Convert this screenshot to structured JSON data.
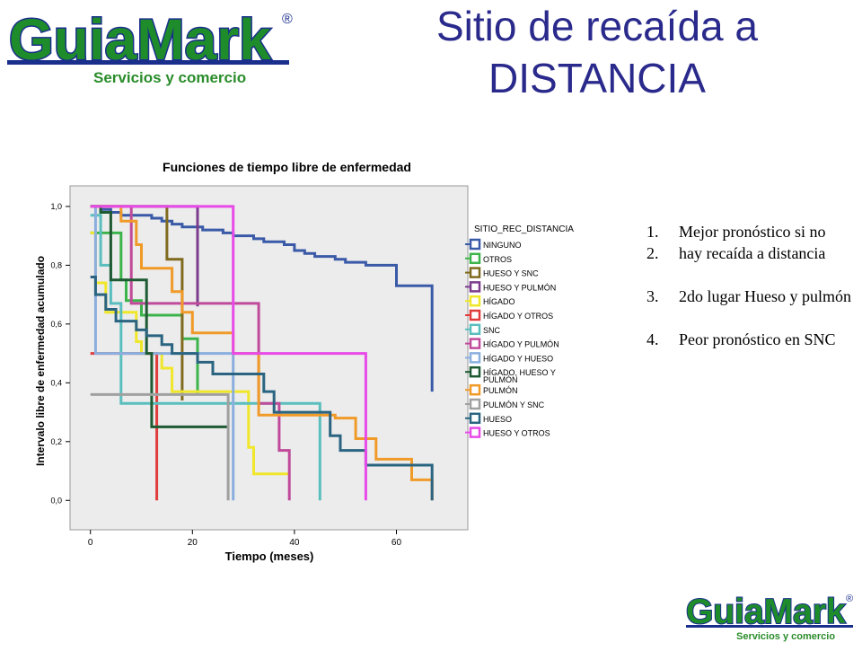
{
  "slide": {
    "title_line1": "Sitio de recaída a",
    "title_line2": "DISTANCIA"
  },
  "logo": {
    "brand": "GuiaMark",
    "registered": "®",
    "tagline": "Servicios y comercio",
    "colors": {
      "text_green": "#1e8c2a",
      "outline_blue": "#1a2f8c",
      "tagline_green": "#2a8c2a"
    }
  },
  "notes": [
    {
      "num": "1.",
      "text": "Mejor pronóstico si no"
    },
    {
      "num": "2.",
      "text": "hay recaída a distancia"
    },
    {
      "num": "3.",
      "text": "2do lugar Hueso y pulmón"
    },
    {
      "num": "4.",
      "text": "Peor pronóstico en SNC"
    }
  ],
  "chart_data": {
    "type": "line",
    "step": true,
    "title": "Funciones de tiempo libre de enfermedad",
    "xlabel": "Tiempo (meses)",
    "ylabel": "Intervalo libre de enfermedad acumulado",
    "xlim": [
      -4,
      74
    ],
    "ylim": [
      -0.1,
      1.07
    ],
    "xticks": [
      0,
      20,
      40,
      60
    ],
    "yticks": [
      0.0,
      0.2,
      0.4,
      0.6,
      0.8,
      1.0
    ],
    "xtick_labels": [
      "0",
      "20",
      "40",
      "60"
    ],
    "ytick_labels": [
      "0,0",
      "0,2",
      "0,4",
      "0,6",
      "0,8",
      "1,0"
    ],
    "grid": false,
    "legend_title": "SITIO_REC_DISTANCIA",
    "legend_position": "right",
    "plot_background": "#ececec",
    "series": [
      {
        "name": "NINGUNO",
        "color": "#3a5aa8",
        "x": [
          0,
          2,
          4,
          6,
          8,
          10,
          12,
          14,
          16,
          18,
          20,
          22,
          24,
          26,
          28,
          30,
          32,
          34,
          36,
          38,
          40,
          42,
          44,
          46,
          48,
          50,
          52,
          54,
          56,
          58,
          60,
          62,
          64,
          66,
          67
        ],
        "y": [
          1.0,
          0.99,
          0.98,
          0.97,
          0.97,
          0.97,
          0.96,
          0.95,
          0.94,
          0.93,
          0.93,
          0.92,
          0.92,
          0.91,
          0.9,
          0.9,
          0.89,
          0.88,
          0.88,
          0.87,
          0.85,
          0.84,
          0.83,
          0.83,
          0.82,
          0.81,
          0.81,
          0.8,
          0.8,
          0.8,
          0.73,
          0.73,
          0.73,
          0.73,
          0.37
        ]
      },
      {
        "name": "OTROS",
        "color": "#3cb44b",
        "x": [
          0,
          0.5,
          6,
          7,
          10,
          16,
          18,
          21,
          21
        ],
        "y": [
          0.91,
          0.91,
          0.75,
          0.68,
          0.63,
          0.63,
          0.55,
          0.36,
          0.36
        ]
      },
      {
        "name": "HUESO Y SNC",
        "color": "#7f6a1e",
        "x": [
          0,
          15,
          15,
          18,
          18
        ],
        "y": [
          1.0,
          1.0,
          0.82,
          0.49,
          0.34
        ]
      },
      {
        "name": "HUESO Y PULMÓN",
        "color": "#7b3c8c",
        "x": [
          0,
          21,
          21,
          21
        ],
        "y": [
          1.0,
          1.0,
          0.66,
          0.66
        ]
      },
      {
        "name": "HÍGADO",
        "color": "#f0e62a",
        "x": [
          0,
          1,
          3,
          5,
          9,
          10,
          14,
          16,
          24,
          31,
          32,
          39,
          39
        ],
        "y": [
          0.91,
          0.74,
          0.64,
          0.64,
          0.54,
          0.5,
          0.45,
          0.37,
          0.37,
          0.18,
          0.09,
          0.09,
          0.09
        ]
      },
      {
        "name": "HÍGADO Y OTROS",
        "color": "#e03c3c",
        "x": [
          0,
          13,
          13
        ],
        "y": [
          0.5,
          0.5,
          0.0
        ]
      },
      {
        "name": "SNC",
        "color": "#5abebe",
        "x": [
          0,
          2,
          4,
          6,
          6,
          9,
          11,
          45,
          45
        ],
        "y": [
          0.97,
          0.8,
          0.67,
          0.5,
          0.33,
          0.33,
          0.33,
          0.33,
          0.0
        ]
      },
      {
        "name": "HÍGADO Y PULMÓN",
        "color": "#c04a9a",
        "x": [
          0,
          8,
          8,
          33,
          33,
          37,
          39,
          39
        ],
        "y": [
          1.0,
          0.95,
          0.67,
          0.5,
          0.33,
          0.17,
          0.17,
          0.0
        ]
      },
      {
        "name": "HÍGADO Y HUESO",
        "color": "#8aaede",
        "x": [
          0,
          1,
          1,
          28,
          28
        ],
        "y": [
          1.0,
          0.98,
          0.5,
          0.5,
          0.0
        ]
      },
      {
        "name": "HÍGADO, HUESO Y PULMÓN",
        "color": "#1e5a32",
        "x": [
          0,
          2,
          4,
          11,
          12,
          27,
          27
        ],
        "y": [
          1.0,
          0.98,
          0.75,
          0.5,
          0.25,
          0.25,
          0.25
        ]
      },
      {
        "name": "PULMÓN",
        "color": "#f09a28",
        "x": [
          0,
          6,
          9,
          10,
          16,
          18,
          20,
          28,
          33,
          33,
          35,
          48,
          52,
          56,
          63,
          67,
          67
        ],
        "y": [
          1.0,
          0.95,
          0.87,
          0.79,
          0.71,
          0.64,
          0.57,
          0.5,
          0.42,
          0.29,
          0.29,
          0.28,
          0.21,
          0.14,
          0.07,
          0.07,
          0.0
        ]
      },
      {
        "name": "PULMÓN Y SNC",
        "color": "#a0a0a0",
        "x": [
          0,
          7,
          27,
          27
        ],
        "y": [
          0.36,
          0.36,
          0.36,
          0.0
        ]
      },
      {
        "name": "HUESO",
        "color": "#2a6480",
        "x": [
          0,
          1,
          3,
          5,
          9,
          11,
          14,
          16,
          21,
          24,
          34,
          36,
          47,
          49,
          54,
          67,
          67
        ],
        "y": [
          0.76,
          0.7,
          0.65,
          0.61,
          0.58,
          0.56,
          0.53,
          0.5,
          0.47,
          0.43,
          0.37,
          0.3,
          0.22,
          0.17,
          0.12,
          0.12,
          0.0
        ]
      },
      {
        "name": "HUESO Y OTROS",
        "color": "#e84ae8",
        "x": [
          0,
          28,
          28,
          54,
          54
        ],
        "y": [
          1.0,
          1.0,
          0.5,
          0.5,
          0.0
        ]
      }
    ]
  }
}
